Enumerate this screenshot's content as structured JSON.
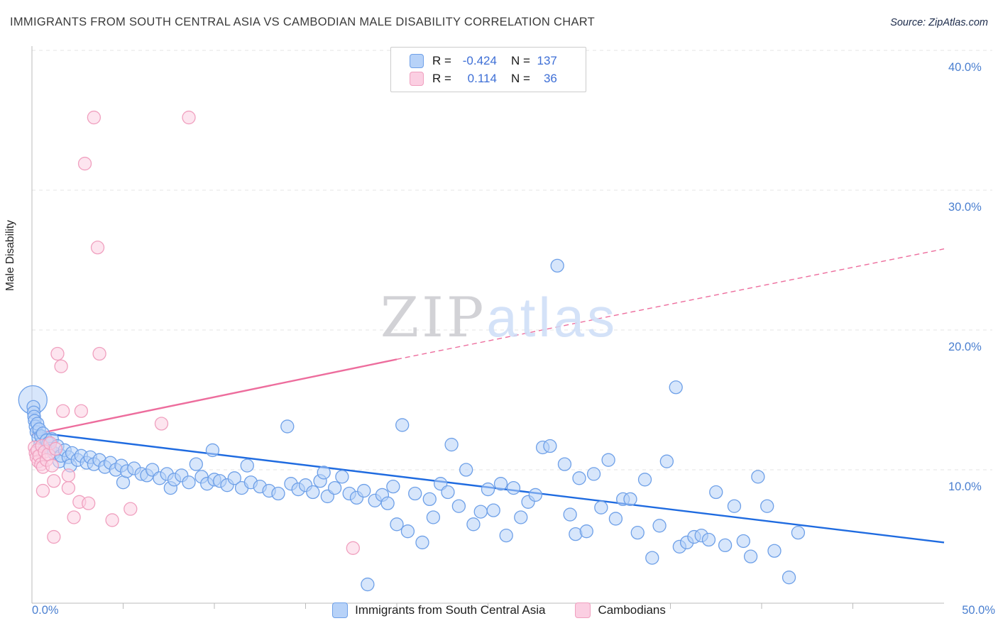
{
  "header": {
    "title": "IMMIGRANTS FROM SOUTH CENTRAL ASIA VS CAMBODIAN MALE DISABILITY CORRELATION CHART",
    "source": "Source: ZipAtlas.com"
  },
  "correlation_box": {
    "rows": [
      {
        "series": "Immigrants from South Central Asia",
        "r_label": "R =",
        "r_value": "-0.424",
        "n_label": "N =",
        "n_value": "137"
      },
      {
        "series": "Cambodians",
        "r_label": "R =",
        "r_value": "0.114",
        "n_label": "N =",
        "n_value": "36"
      }
    ]
  },
  "axes": {
    "y_title": "Male Disability",
    "y_ticks": [
      {
        "value": 40,
        "label": "40.0%"
      },
      {
        "value": 30,
        "label": "30.0%"
      },
      {
        "value": 20,
        "label": "20.0%"
      },
      {
        "value": 10,
        "label": "10.0%"
      }
    ],
    "x_min_label": "0.0%",
    "x_max_label": "50.0%"
  },
  "legend": {
    "items": [
      {
        "label": "Immigrants from South Central Asia",
        "fill": "#b7d2f8",
        "stroke": "#6ea0e8"
      },
      {
        "label": "Cambodians",
        "fill": "#fbcfe2",
        "stroke": "#f0a0bf"
      }
    ]
  },
  "watermark": {
    "zip": "ZIP",
    "atlas": "atlas"
  },
  "chart_data": {
    "type": "scatter",
    "title": "Immigrants from South Central Asia vs Cambodian Male Disability Correlation Chart",
    "xlabel": "Immigrants from South Central Asia (%)",
    "ylabel": "Male Disability (%)",
    "xlim": [
      0,
      50
    ],
    "ylim": [
      0,
      42
    ],
    "grid": "horizontal-dashed",
    "legend_position": "top-center and bottom-center",
    "series": [
      {
        "name": "Immigrants from South Central Asia",
        "R": -0.424,
        "N": 137,
        "stroke": "#6ea0e8",
        "fill": "#b7d2f8",
        "points": [
          [
            0.05,
            15.0,
            20
          ],
          [
            0.08,
            14.5
          ],
          [
            0.1,
            14.1
          ],
          [
            0.12,
            13.8
          ],
          [
            0.15,
            13.5
          ],
          [
            0.2,
            13.1
          ],
          [
            0.25,
            12.7
          ],
          [
            0.3,
            13.3
          ],
          [
            0.35,
            12.3
          ],
          [
            0.4,
            12.9
          ],
          [
            0.45,
            11.8
          ],
          [
            0.5,
            12.4
          ],
          [
            0.6,
            12.6
          ],
          [
            0.7,
            11.6
          ],
          [
            0.8,
            12.1
          ],
          [
            0.9,
            11.9
          ],
          [
            1.0,
            11.5
          ],
          [
            1.1,
            12.2
          ],
          [
            1.2,
            11.2
          ],
          [
            1.4,
            11.7
          ],
          [
            1.5,
            10.6
          ],
          [
            1.6,
            11.0
          ],
          [
            1.8,
            11.4
          ],
          [
            2.0,
            10.9
          ],
          [
            2.1,
            10.3
          ],
          [
            2.2,
            11.2
          ],
          [
            2.5,
            10.7
          ],
          [
            2.7,
            11.0
          ],
          [
            3.0,
            10.5
          ],
          [
            3.2,
            10.9
          ],
          [
            3.4,
            10.4
          ],
          [
            3.7,
            10.7
          ],
          [
            4.0,
            10.2
          ],
          [
            4.3,
            10.5
          ],
          [
            4.6,
            10.0
          ],
          [
            4.9,
            10.3
          ],
          [
            5.0,
            9.1
          ],
          [
            5.2,
            9.9
          ],
          [
            5.6,
            10.1
          ],
          [
            6.0,
            9.7
          ],
          [
            6.3,
            9.6
          ],
          [
            6.6,
            10.0
          ],
          [
            7.0,
            9.4
          ],
          [
            7.4,
            9.7
          ],
          [
            7.6,
            8.7
          ],
          [
            7.8,
            9.3
          ],
          [
            8.2,
            9.6
          ],
          [
            8.6,
            9.1
          ],
          [
            9.0,
            10.4
          ],
          [
            9.3,
            9.5
          ],
          [
            9.6,
            9.0
          ],
          [
            9.9,
            11.4
          ],
          [
            10.0,
            9.3
          ],
          [
            10.3,
            9.2
          ],
          [
            10.7,
            8.9
          ],
          [
            11.1,
            9.4
          ],
          [
            11.5,
            8.7
          ],
          [
            11.8,
            10.3
          ],
          [
            12.0,
            9.1
          ],
          [
            12.5,
            8.8
          ],
          [
            13.0,
            8.5
          ],
          [
            13.5,
            8.3
          ],
          [
            14.0,
            13.1
          ],
          [
            14.2,
            9.0
          ],
          [
            14.6,
            8.6
          ],
          [
            15.0,
            8.9
          ],
          [
            15.4,
            8.4
          ],
          [
            15.8,
            9.2
          ],
          [
            16.0,
            9.8
          ],
          [
            16.2,
            8.1
          ],
          [
            16.6,
            8.7
          ],
          [
            17.0,
            9.5
          ],
          [
            17.4,
            8.3
          ],
          [
            17.8,
            8.0
          ],
          [
            18.2,
            8.5
          ],
          [
            18.4,
            1.8
          ],
          [
            18.8,
            7.8
          ],
          [
            19.2,
            8.2
          ],
          [
            19.5,
            7.6
          ],
          [
            19.8,
            8.8
          ],
          [
            20.0,
            6.1
          ],
          [
            20.3,
            13.2
          ],
          [
            20.6,
            5.6
          ],
          [
            21.0,
            8.3
          ],
          [
            21.4,
            4.8
          ],
          [
            21.8,
            7.9
          ],
          [
            22.0,
            6.6
          ],
          [
            22.4,
            9.0
          ],
          [
            22.8,
            8.4
          ],
          [
            23.0,
            11.8
          ],
          [
            23.4,
            7.4
          ],
          [
            23.8,
            10.0
          ],
          [
            24.2,
            6.1
          ],
          [
            24.6,
            7.0
          ],
          [
            25.0,
            8.6
          ],
          [
            25.3,
            7.1
          ],
          [
            25.7,
            9.0
          ],
          [
            26.0,
            5.3
          ],
          [
            26.4,
            8.7
          ],
          [
            26.8,
            6.6
          ],
          [
            27.2,
            7.7
          ],
          [
            27.6,
            8.2
          ],
          [
            28.0,
            11.6
          ],
          [
            28.4,
            11.7
          ],
          [
            28.8,
            24.6
          ],
          [
            29.2,
            10.4
          ],
          [
            29.5,
            6.8
          ],
          [
            29.8,
            5.4
          ],
          [
            30.0,
            9.4
          ],
          [
            30.4,
            5.6
          ],
          [
            30.8,
            9.7
          ],
          [
            31.2,
            7.3
          ],
          [
            31.6,
            10.7
          ],
          [
            32.0,
            6.5
          ],
          [
            32.4,
            7.9
          ],
          [
            32.8,
            7.9
          ],
          [
            33.2,
            5.5
          ],
          [
            33.6,
            9.3
          ],
          [
            34.0,
            3.7
          ],
          [
            34.4,
            6.0
          ],
          [
            34.8,
            10.6
          ],
          [
            35.3,
            15.9
          ],
          [
            35.5,
            4.5
          ],
          [
            35.9,
            4.8
          ],
          [
            36.3,
            5.2
          ],
          [
            36.7,
            5.3
          ],
          [
            37.1,
            5.0
          ],
          [
            37.5,
            8.4
          ],
          [
            38.0,
            4.6
          ],
          [
            38.5,
            7.4
          ],
          [
            39.0,
            4.9
          ],
          [
            39.4,
            3.8
          ],
          [
            39.8,
            9.5
          ],
          [
            40.3,
            7.4
          ],
          [
            40.7,
            4.2
          ],
          [
            41.5,
            2.3
          ],
          [
            42.0,
            5.5
          ]
        ]
      },
      {
        "name": "Cambodians",
        "R": 0.114,
        "N": 36,
        "stroke": "#f0a0bf",
        "fill": "#fbcfe2",
        "points": [
          [
            0.15,
            11.6
          ],
          [
            0.2,
            11.2
          ],
          [
            0.25,
            10.9
          ],
          [
            0.3,
            11.4
          ],
          [
            0.35,
            10.6
          ],
          [
            0.4,
            11.0
          ],
          [
            0.5,
            10.4
          ],
          [
            0.55,
            11.7
          ],
          [
            0.6,
            10.2
          ],
          [
            0.7,
            11.3
          ],
          [
            0.8,
            10.7
          ],
          [
            0.9,
            11.1
          ],
          [
            1.0,
            11.9
          ],
          [
            1.1,
            10.3
          ],
          [
            1.3,
            11.5
          ],
          [
            0.6,
            8.5
          ],
          [
            1.2,
            9.2
          ],
          [
            1.4,
            18.3
          ],
          [
            1.6,
            17.4
          ],
          [
            1.7,
            14.2
          ],
          [
            2.0,
            8.7
          ],
          [
            2.3,
            6.6
          ],
          [
            1.2,
            5.2
          ],
          [
            2.0,
            9.6
          ],
          [
            2.7,
            14.2
          ],
          [
            2.9,
            31.9
          ],
          [
            3.4,
            35.2
          ],
          [
            3.6,
            25.9
          ],
          [
            3.7,
            18.3
          ],
          [
            2.6,
            7.7
          ],
          [
            3.1,
            7.6
          ],
          [
            4.4,
            6.4
          ],
          [
            5.4,
            7.2
          ],
          [
            7.1,
            13.3
          ],
          [
            8.6,
            35.2
          ],
          [
            17.6,
            4.4
          ]
        ]
      }
    ],
    "trend_lines": [
      {
        "series": "Immigrants from South Central Asia",
        "color": "#1f6be0",
        "style": "solid",
        "x1": 0,
        "y1": 12.7,
        "x2": 50,
        "y2": 4.8
      },
      {
        "series": "Cambodians",
        "color": "#ed6d9d",
        "style": "solid",
        "x1": 0,
        "y1": 12.5,
        "x2": 20,
        "y2": 17.9
      },
      {
        "series": "Cambodians",
        "color": "#ed6d9d",
        "style": "dashed",
        "x1": 20,
        "y1": 17.9,
        "x2": 50,
        "y2": 25.8
      }
    ]
  }
}
